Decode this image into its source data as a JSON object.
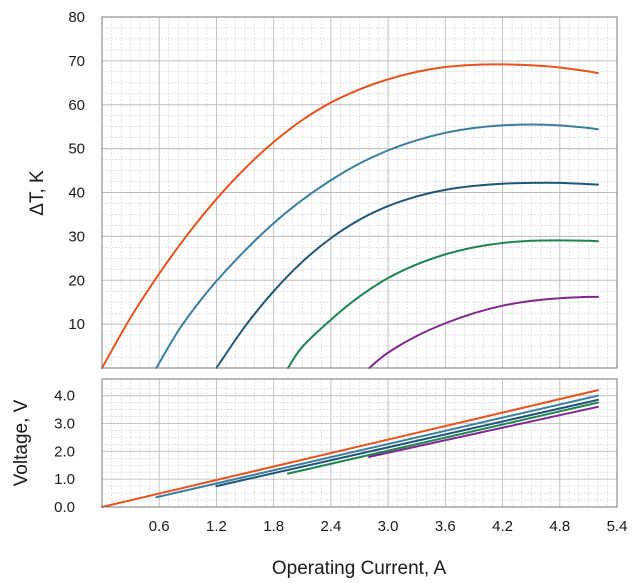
{
  "chart_data": [
    {
      "type": "line",
      "panel": "top",
      "title": "",
      "xlabel": "",
      "ylabel": "ΔT, K",
      "xlim": [
        0,
        5.4
      ],
      "ylim": [
        0,
        80
      ],
      "yticks": [
        10,
        20,
        30,
        40,
        50,
        60,
        70,
        80
      ],
      "grid": true,
      "series": [
        {
          "color": "#e8531f",
          "x": [
            0.0,
            0.3,
            0.6,
            0.9,
            1.2,
            1.5,
            1.8,
            2.1,
            2.4,
            2.7,
            3.0,
            3.3,
            3.6,
            3.9,
            4.2,
            4.5,
            4.8,
            5.1,
            5.2
          ],
          "y": [
            0,
            11.5,
            21.5,
            30.5,
            38.5,
            45.5,
            51.5,
            56.5,
            60.5,
            63.5,
            65.8,
            67.5,
            68.6,
            69.1,
            69.2,
            69.0,
            68.5,
            67.6,
            67.2
          ]
        },
        {
          "color": "#3a7fa0",
          "x": [
            0.57,
            0.8,
            1.0,
            1.2,
            1.5,
            1.8,
            2.1,
            2.4,
            2.7,
            3.0,
            3.3,
            3.6,
            3.9,
            4.2,
            4.5,
            4.8,
            5.1,
            5.2
          ],
          "y": [
            0,
            8.5,
            14.5,
            19.8,
            26.8,
            33.0,
            38.3,
            42.8,
            46.6,
            49.6,
            51.9,
            53.6,
            54.7,
            55.3,
            55.5,
            55.3,
            54.7,
            54.4
          ]
        },
        {
          "color": "#1f5575",
          "x": [
            1.2,
            1.5,
            1.8,
            2.1,
            2.4,
            2.7,
            3.0,
            3.3,
            3.6,
            3.9,
            4.2,
            4.5,
            4.8,
            5.1,
            5.2
          ],
          "y": [
            0,
            9.5,
            17.5,
            24.2,
            29.6,
            33.8,
            36.9,
            39.1,
            40.6,
            41.5,
            42.0,
            42.2,
            42.2,
            41.9,
            41.8
          ]
        },
        {
          "color": "#1e8553",
          "x": [
            1.95,
            2.1,
            2.4,
            2.7,
            3.0,
            3.3,
            3.6,
            3.9,
            4.2,
            4.5,
            4.8,
            5.1,
            5.2
          ],
          "y": [
            0,
            4.8,
            11.0,
            16.3,
            20.5,
            23.6,
            25.9,
            27.5,
            28.5,
            29.0,
            29.1,
            29.0,
            28.9
          ]
        },
        {
          "color": "#82278f",
          "x": [
            2.8,
            3.0,
            3.3,
            3.6,
            3.9,
            4.2,
            4.5,
            4.8,
            5.1,
            5.2
          ],
          "y": [
            0,
            3.5,
            7.3,
            10.2,
            12.5,
            14.2,
            15.3,
            15.9,
            16.2,
            16.2
          ]
        }
      ]
    },
    {
      "type": "line",
      "panel": "bottom",
      "title": "",
      "xlabel": "Operating Current, A",
      "ylabel": "Voltage, V",
      "xlim": [
        0,
        5.4
      ],
      "ylim": [
        0,
        4.6
      ],
      "xticks": [
        "0.6",
        "1.2",
        "1.8",
        "2.4",
        "3.0",
        "3.6",
        "4.2",
        "4.8",
        "5.4"
      ],
      "yticks": [
        "0.0",
        "1.0",
        "2.0",
        "3.0",
        "4.0"
      ],
      "grid": true,
      "series": [
        {
          "color": "#e8531f",
          "x": [
            0.0,
            5.2
          ],
          "y": [
            0.0,
            4.2
          ]
        },
        {
          "color": "#3a7fa0",
          "x": [
            0.57,
            5.2
          ],
          "y": [
            0.35,
            4.0
          ]
        },
        {
          "color": "#1f5575",
          "x": [
            1.2,
            5.2
          ],
          "y": [
            0.75,
            3.85
          ]
        },
        {
          "color": "#1e8553",
          "x": [
            1.95,
            5.2
          ],
          "y": [
            1.2,
            3.75
          ]
        },
        {
          "color": "#82278f",
          "x": [
            2.8,
            5.2
          ],
          "y": [
            1.8,
            3.6
          ]
        }
      ]
    }
  ]
}
